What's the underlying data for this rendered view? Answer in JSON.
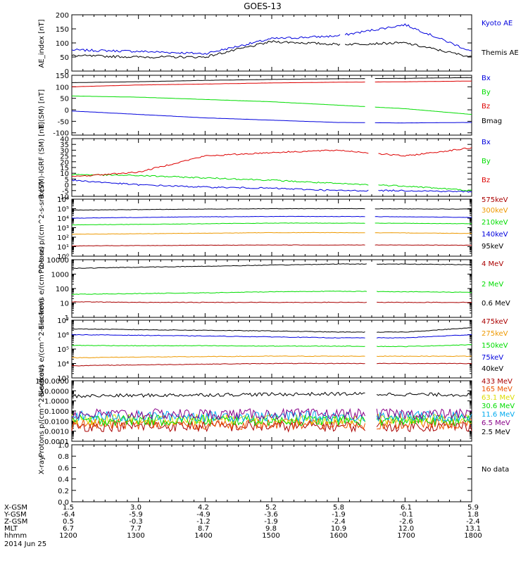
{
  "title": "GOES-13",
  "no_data_label": "No data",
  "date_label": "2014 Jun 25",
  "ephemeris": {
    "row_labels": [
      "X-GSM",
      "Y-GSM",
      "Z-GSM",
      "MLT",
      "hhmm"
    ],
    "rows": [
      [
        "1.5",
        "3.0",
        "4.2",
        "5.2",
        "5.8",
        "6.1",
        "5.9"
      ],
      [
        "-6.4",
        "-5.9",
        "-4.9",
        "-3.6",
        "-1.9",
        "-0.1",
        "1.8"
      ],
      [
        "0.5",
        "-0.3",
        "-1.2",
        "-1.9",
        "-2.4",
        "-2.6",
        "-2.4"
      ],
      [
        "6.7",
        "7.7",
        "8.7",
        "9.8",
        "10.9",
        "12.0",
        "13.1"
      ],
      [
        "1200",
        "1300",
        "1400",
        "1500",
        "1600",
        "1700",
        "1800"
      ]
    ]
  },
  "chart_data": [
    {
      "type": "line",
      "ylabel": "AE_index [nT]",
      "ylim": [
        0,
        200
      ],
      "yticks": [
        0,
        50,
        100,
        150,
        200
      ],
      "ytick_labels": [
        "0",
        "50",
        "100",
        "150",
        "200"
      ],
      "x": [
        1200,
        1300,
        1400,
        1500,
        1600,
        1700,
        1800
      ],
      "series": [
        {
          "name": "Kyoto AE",
          "color": "#0000dd",
          "values": [
            75,
            70,
            62,
            115,
            125,
            165,
            70
          ]
        },
        {
          "name": "Themis AE",
          "color": "#000000",
          "values": [
            55,
            50,
            50,
            105,
            95,
            100,
            50
          ]
        }
      ]
    },
    {
      "type": "line",
      "ylabel": "B (SM) [nT]",
      "ylim": [
        -110,
        150
      ],
      "yticks": [
        -100,
        -50,
        0,
        50,
        100,
        150
      ],
      "ytick_labels": [
        "-100",
        "-50",
        "0",
        "50",
        "100",
        "150"
      ],
      "x": [
        1200,
        1300,
        1400,
        1500,
        1600,
        1700,
        1800
      ],
      "series": [
        {
          "name": "Bx",
          "color": "#0000dd",
          "values": [
            -5,
            -20,
            -35,
            -45,
            -55,
            -57,
            -55
          ]
        },
        {
          "name": "By",
          "color": "#00dd00",
          "values": [
            60,
            55,
            45,
            35,
            20,
            5,
            -20
          ]
        },
        {
          "name": "Bz",
          "color": "#dd0000",
          "values": [
            100,
            108,
            112,
            117,
            120,
            122,
            125
          ]
        },
        {
          "name": "Bmag",
          "color": "#000000",
          "values": [
            118,
            122,
            128,
            132,
            135,
            137,
            140
          ]
        }
      ]
    },
    {
      "type": "line",
      "ylabel": "B (SM)-IGRF (SM) [nT]",
      "ylim": [
        -10,
        40
      ],
      "yticks": [
        -10,
        -5,
        0,
        5,
        10,
        15,
        20,
        25,
        30,
        35,
        40
      ],
      "ytick_labels": [
        "-10",
        "-5",
        "0",
        "5",
        "10",
        "15",
        "20",
        "25",
        "30",
        "35",
        "40"
      ],
      "x": [
        1200,
        1300,
        1400,
        1500,
        1600,
        1700,
        1800
      ],
      "series": [
        {
          "name": "Bx",
          "color": "#0000dd",
          "values": [
            4,
            0,
            -2,
            -3,
            -5,
            -5,
            -6
          ]
        },
        {
          "name": "By",
          "color": "#00dd00",
          "values": [
            9,
            8,
            6,
            4,
            1,
            -1,
            -5
          ]
        },
        {
          "name": "Bz",
          "color": "#dd0000",
          "values": [
            7,
            11,
            25,
            28,
            30,
            25,
            32
          ]
        }
      ]
    },
    {
      "type": "line",
      "ylabel": "Protons p/(cm^2-s-sr-keV)",
      "yscale": "log",
      "ylim": [
        1,
        1000000
      ],
      "yticks": [
        1,
        10,
        100,
        1000,
        10000,
        100000,
        1000000
      ],
      "ytick_labels": [
        "10⁰",
        "10¹",
        "10²",
        "10³",
        "10⁴",
        "10⁵",
        "10⁶"
      ],
      "x": [
        1200,
        1300,
        1400,
        1500,
        1600,
        1700,
        1800
      ],
      "series": [
        {
          "name": "575keV",
          "color": "#aa0000",
          "values": [
            12,
            13,
            14,
            15,
            15,
            15,
            14
          ]
        },
        {
          "name": "300keV",
          "color": "#ee9900",
          "values": [
            200,
            230,
            260,
            300,
            300,
            280,
            250
          ]
        },
        {
          "name": "210keV",
          "color": "#00dd00",
          "values": [
            2000,
            2200,
            2600,
            3000,
            3000,
            2900,
            2600
          ]
        },
        {
          "name": "140keV",
          "color": "#0000dd",
          "values": [
            10000,
            12000,
            14000,
            15000,
            15000,
            14000,
            12000
          ]
        },
        {
          "name": "95keV",
          "color": "#000000",
          "values": [
            70000,
            80000,
            90000,
            100000,
            100000,
            95000,
            90000
          ]
        }
      ]
    },
    {
      "type": "line",
      "ylabel": "Electrons e/(cm^2-s-sr)",
      "yscale": "log",
      "ylim": [
        1,
        10000
      ],
      "yticks": [
        1,
        10,
        100,
        1000,
        10000
      ],
      "ytick_labels": [
        "1",
        "10",
        "100",
        "1000",
        "10000"
      ],
      "x": [
        1200,
        1300,
        1400,
        1500,
        1600,
        1700,
        1800
      ],
      "series": [
        {
          "name": "4 MeV",
          "color": "#aa0000",
          "values": [
            12,
            11,
            11,
            11,
            11,
            11,
            11
          ]
        },
        {
          "name": "2 MeV",
          "color": "#00dd00",
          "values": [
            40,
            45,
            50,
            60,
            65,
            60,
            55
          ]
        },
        {
          "name": "0.6 MeV",
          "color": "#000000",
          "values": [
            2500,
            3000,
            3500,
            4200,
            5000,
            5000,
            4500
          ]
        }
      ]
    },
    {
      "type": "line",
      "ylabel": "Electrons e/(cm^2-s-sr-keV)",
      "yscale": "log",
      "ylim": [
        1000,
        10000000
      ],
      "yticks": [
        1000,
        10000,
        100000,
        1000000,
        10000000
      ],
      "ytick_labels": [
        "10³",
        "10⁴",
        "10⁵",
        "10⁶",
        "10⁷"
      ],
      "x": [
        1200,
        1300,
        1400,
        1500,
        1600,
        1700,
        1800
      ],
      "series": [
        {
          "name": "475keV",
          "color": "#aa0000",
          "values": [
            7000,
            8000,
            9000,
            10000,
            10000,
            10000,
            10000
          ]
        },
        {
          "name": "275keV",
          "color": "#ee9900",
          "values": [
            25000,
            28000,
            30000,
            32000,
            32000,
            32000,
            32000
          ]
        },
        {
          "name": "150keV",
          "color": "#00dd00",
          "values": [
            180000,
            170000,
            170000,
            160000,
            160000,
            150000,
            200000
          ]
        },
        {
          "name": "75keV",
          "color": "#0000dd",
          "values": [
            1000000,
            900000,
            800000,
            700000,
            600000,
            600000,
            1000000
          ]
        },
        {
          "name": "40keV",
          "color": "#000000",
          "values": [
            2500000,
            2200000,
            2000000,
            1800000,
            1500000,
            1500000,
            3000000
          ]
        }
      ]
    },
    {
      "type": "line",
      "ylabel": "Protons p/(cm^2-s-sr-keV)",
      "yscale": "log",
      "ylim": [
        0.0001,
        100
      ],
      "yticks": [
        0.0001,
        0.001,
        0.01,
        0.1,
        1,
        10,
        100
      ],
      "ytick_labels": [
        "0.0001",
        "0.0010",
        "0.0100",
        "0.1000",
        "1.0000",
        "10.0000",
        "100.0000"
      ],
      "x": [
        1200,
        1300,
        1400,
        1500,
        1600,
        1700,
        1800
      ],
      "series": [
        {
          "name": "433 MeV",
          "color": "#aa0000",
          "values": [
            0.003,
            0.003,
            0.003,
            0.003,
            0.003,
            0.003,
            0.003
          ]
        },
        {
          "name": "165 MeV",
          "color": "#ee5500",
          "values": [
            0.005,
            0.005,
            0.005,
            0.005,
            0.005,
            0.005,
            0.005
          ]
        },
        {
          "name": "63.1 MeV",
          "color": "#dddd00",
          "values": [
            0.015,
            0.015,
            0.015,
            0.015,
            0.015,
            0.015,
            0.015
          ]
        },
        {
          "name": "30.6 MeV",
          "color": "#00dd00",
          "values": [
            0.012,
            0.012,
            0.012,
            0.012,
            0.012,
            0.012,
            0.012
          ]
        },
        {
          "name": "11.6 MeV",
          "color": "#00aaee",
          "values": [
            0.03,
            0.03,
            0.03,
            0.03,
            0.03,
            0.03,
            0.03
          ]
        },
        {
          "name": "6.5 MeV",
          "color": "#880088",
          "values": [
            0.05,
            0.05,
            0.05,
            0.05,
            0.05,
            0.05,
            0.05
          ]
        },
        {
          "name": "2.5 MeV",
          "color": "#000000",
          "values": [
            3,
            3.5,
            4,
            4.5,
            5,
            4.5,
            4
          ]
        }
      ]
    },
    {
      "type": "line",
      "ylabel": "X-ray",
      "ylim": [
        0,
        1
      ],
      "yticks": [
        0,
        0.2,
        0.4,
        0.6,
        0.8,
        1.0
      ],
      "ytick_labels": [
        "0.0",
        "0.2",
        "0.4",
        "0.6",
        "0.8",
        "1.0"
      ],
      "x": [
        1200,
        1300,
        1400,
        1500,
        1600,
        1700,
        1800
      ],
      "series": []
    }
  ]
}
